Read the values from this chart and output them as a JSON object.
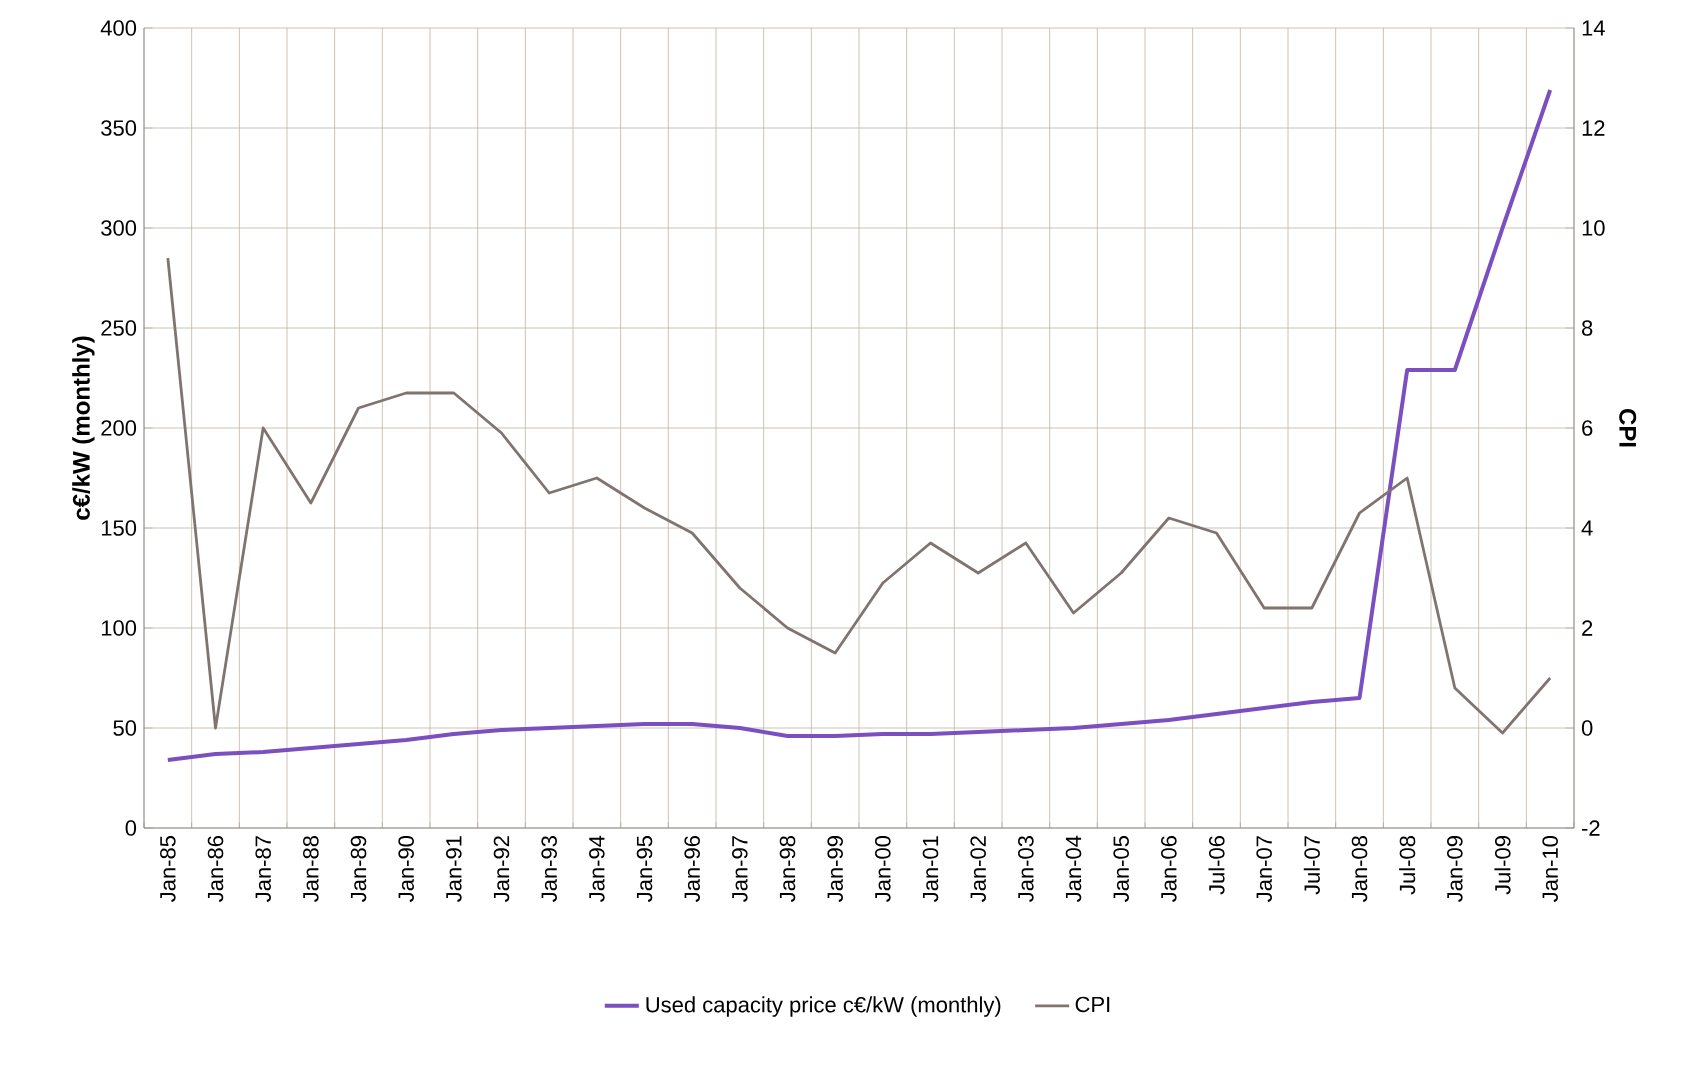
{
  "chart_data": {
    "type": "line",
    "ylabel": "c€/kW (monthly)",
    "y2label": "CPI",
    "categories": [
      "Jan-85",
      "Jan-86",
      "Jan-87",
      "Jan-88",
      "Jan-89",
      "Jan-90",
      "Jan-91",
      "Jan-92",
      "Jan-93",
      "Jan-94",
      "Jan-95",
      "Jan-96",
      "Jan-97",
      "Jan-98",
      "Jan-99",
      "Jan-00",
      "Jan-01",
      "Jan-02",
      "Jan-03",
      "Jan-04",
      "Jan-05",
      "Jan-06",
      "Jul-06",
      "Jan-07",
      "Jul-07",
      "Jan-08",
      "Jul-08",
      "Jan-09",
      "Jul-09",
      "Jan-10"
    ],
    "series": [
      {
        "name": "Used capacity price c€/kW (monthly)",
        "color": "#7b4fbf",
        "values": [
          34,
          37,
          38,
          40,
          42,
          44,
          47,
          49,
          50,
          51,
          52,
          52,
          50,
          46,
          46,
          47,
          47,
          48,
          49,
          50,
          52,
          54,
          57,
          60,
          63,
          65,
          229,
          229,
          300,
          369
        ]
      },
      {
        "name": "CPI",
        "color": "#7f7470",
        "axis": "y2",
        "values": [
          9.4,
          0.0,
          6.0,
          4.5,
          6.4,
          6.7,
          6.7,
          5.9,
          4.7,
          5.0,
          4.4,
          3.9,
          2.8,
          2.0,
          1.5,
          2.9,
          3.7,
          3.1,
          3.7,
          2.3,
          3.1,
          4.2,
          3.9,
          2.4,
          2.4,
          4.3,
          5.0,
          0.8,
          -0.1,
          1.0
        ]
      }
    ],
    "ylim": [
      0,
      400
    ],
    "yticks": [
      0,
      50,
      100,
      150,
      200,
      250,
      300,
      350,
      400
    ],
    "y2lim": [
      -2,
      14
    ],
    "y2ticks": [
      -2,
      0,
      2,
      4,
      6,
      8,
      10,
      12,
      14
    ],
    "grid": true,
    "legend": "bottom"
  }
}
